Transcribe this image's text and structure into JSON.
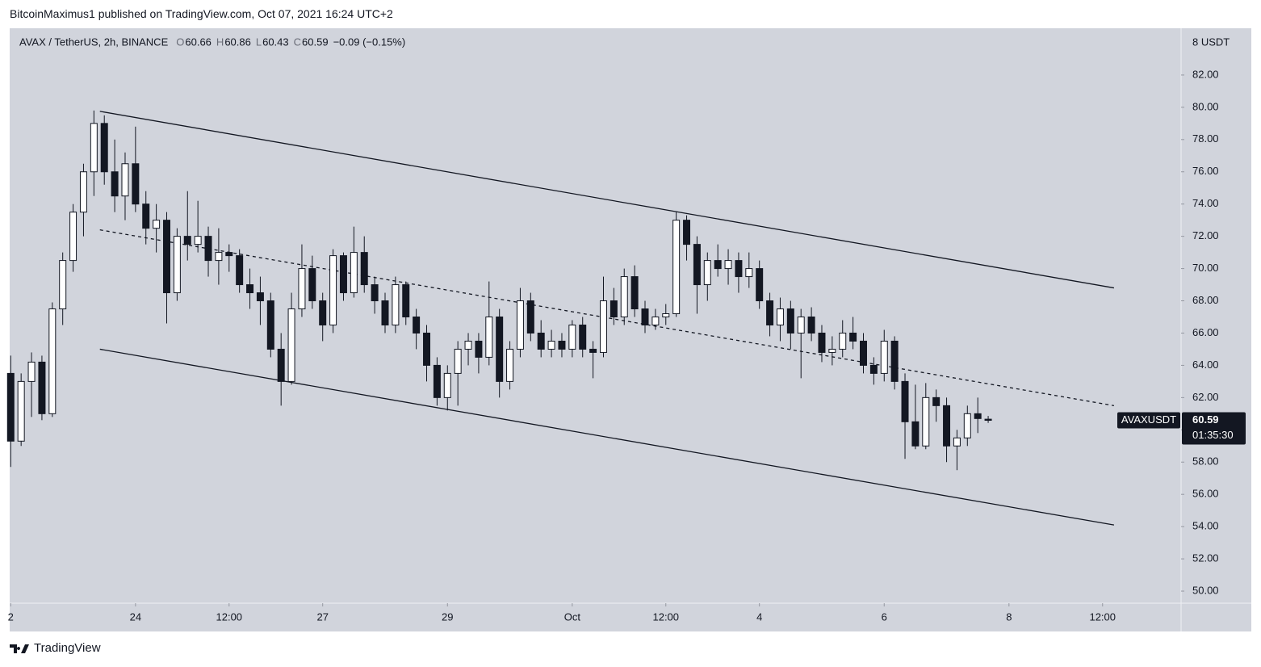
{
  "header": {
    "published": "BitcoinMaximus1 published on TradingView.com, Oct 07, 2021 16:24 UTC+2"
  },
  "footer": {
    "brand": "TradingView"
  },
  "chart_data": {
    "type": "candlestick",
    "legend": {
      "symbol": "AVAX / TetherUS, 2h, BINANCE",
      "items": [
        {
          "key": "O",
          "value": "60.66"
        },
        {
          "key": "H",
          "value": "60.86"
        },
        {
          "key": "L",
          "value": "60.43"
        },
        {
          "key": "C",
          "value": "60.59"
        }
      ],
      "change": "−0.09 (−0.15%)"
    },
    "unit_label": "8 USDT",
    "symbol_tag": "AVAXUSDT",
    "last_price_label": "60.59",
    "countdown": "01:35:30",
    "up_color": "#ffffff",
    "down_color": "#131722",
    "wick_color": "#131722",
    "grid": false,
    "xlim": [
      -0.4,
      450.2
    ],
    "ylim": [
      49.25,
      84.9
    ],
    "xticks": [
      {
        "value": 0,
        "label": "2"
      },
      {
        "value": 48,
        "label": "24"
      },
      {
        "value": 84,
        "label": "12:00"
      },
      {
        "value": 120,
        "label": "27"
      },
      {
        "value": 168,
        "label": "29"
      },
      {
        "value": 216,
        "label": "Oct"
      },
      {
        "value": 252,
        "label": "12:00"
      },
      {
        "value": 288,
        "label": "4"
      },
      {
        "value": 336,
        "label": "6"
      },
      {
        "value": 384,
        "label": "8"
      },
      {
        "value": 420,
        "label": "12:00"
      }
    ],
    "yticks": [
      {
        "value": 50,
        "label": "50.00"
      },
      {
        "value": 52,
        "label": "52.00"
      },
      {
        "value": 54,
        "label": "54.00"
      },
      {
        "value": 56,
        "label": "56.00"
      },
      {
        "value": 58,
        "label": "58.00"
      },
      {
        "value": 60,
        "label": "60.00"
      },
      {
        "value": 62,
        "label": "62.00"
      },
      {
        "value": 64,
        "label": "64.00"
      },
      {
        "value": 66,
        "label": "66.00"
      },
      {
        "value": 68,
        "label": "68.00"
      },
      {
        "value": 70,
        "label": "70.00"
      },
      {
        "value": 72,
        "label": "72.00"
      },
      {
        "value": 74,
        "label": "74.00"
      },
      {
        "value": 76,
        "label": "76.00"
      },
      {
        "value": 78,
        "label": "78.00"
      },
      {
        "value": 80,
        "label": "80.00"
      },
      {
        "value": 82,
        "label": "82.00"
      }
    ],
    "x": [
      0,
      4,
      8,
      12,
      16,
      20,
      24,
      28,
      32,
      36,
      40,
      44,
      48,
      52,
      56,
      60,
      64,
      68,
      72,
      76,
      80,
      84,
      88,
      92,
      96,
      100,
      104,
      108,
      112,
      116,
      120,
      124,
      128,
      132,
      136,
      140,
      144,
      148,
      152,
      156,
      160,
      164,
      168,
      172,
      176,
      180,
      184,
      188,
      192,
      196,
      200,
      204,
      208,
      212,
      216,
      220,
      224,
      228,
      232,
      236,
      240,
      244,
      248,
      252,
      256,
      260,
      264,
      268,
      272,
      276,
      280,
      284,
      288,
      292,
      296,
      300,
      304,
      308,
      312,
      316,
      320,
      324,
      328,
      332,
      336,
      340,
      344,
      348,
      352,
      356,
      360,
      364,
      368,
      372,
      376
    ],
    "open": [
      63.5,
      59.3,
      63.0,
      64.2,
      61.0,
      67.5,
      70.5,
      73.5,
      76.0,
      79.0,
      76.0,
      74.5,
      76.5,
      74.0,
      72.5,
      73.0,
      68.5,
      72.0,
      71.5,
      72.0,
      70.5,
      71.0,
      70.8,
      69.0,
      68.5,
      68.0,
      65.0,
      63.0,
      67.5,
      70.0,
      68.0,
      66.5,
      70.8,
      68.5,
      71.0,
      69.0,
      68.0,
      66.5,
      69.0,
      67.0,
      66.0,
      64.0,
      62.0,
      63.5,
      65.0,
      65.5,
      64.5,
      67.0,
      63.0,
      65.0,
      68.0,
      66.0,
      65.0,
      65.5,
      65.0,
      66.5,
      65.0,
      64.8,
      68.0,
      67.0,
      69.5,
      67.5,
      66.5,
      67.0,
      67.2,
      73.0,
      71.5,
      69.0,
      70.5,
      70.0,
      70.5,
      69.5,
      70.0,
      68.0,
      66.5,
      67.5,
      66.0,
      67.0,
      66.0,
      64.8,
      65.0,
      66.0,
      65.5,
      64.0,
      63.5,
      65.5,
      63.0,
      60.5,
      59.0,
      62.0,
      61.5,
      59.0,
      59.5,
      61.0,
      60.66
    ],
    "high": [
      64.6,
      63.5,
      64.8,
      64.6,
      67.9,
      71.0,
      74.0,
      76.5,
      79.8,
      79.5,
      78.0,
      77.2,
      78.8,
      74.8,
      74.0,
      73.5,
      72.5,
      74.8,
      74.2,
      72.6,
      72.5,
      71.5,
      71.2,
      70.0,
      69.5,
      68.5,
      66.0,
      68.5,
      71.5,
      70.8,
      68.5,
      71.2,
      71.0,
      72.6,
      72.0,
      69.5,
      68.5,
      69.5,
      69.2,
      67.5,
      66.5,
      64.5,
      64.0,
      65.5,
      66.0,
      66.0,
      69.2,
      67.5,
      65.5,
      68.8,
      68.5,
      66.8,
      66.2,
      66.0,
      66.8,
      67.0,
      65.5,
      69.5,
      68.8,
      70.0,
      70.2,
      68.0,
      67.5,
      67.8,
      73.5,
      73.3,
      72.0,
      71.0,
      71.5,
      71.2,
      71.0,
      71.0,
      70.5,
      68.5,
      68.2,
      68.0,
      67.5,
      67.6,
      66.5,
      65.8,
      66.8,
      67.0,
      66.0,
      64.5,
      66.2,
      65.8,
      63.5,
      62.8,
      62.9,
      62.5,
      62.0,
      60.0,
      61.5,
      62.0,
      60.86
    ],
    "low": [
      57.7,
      59.0,
      60.8,
      60.6,
      60.8,
      66.5,
      69.8,
      72.0,
      74.5,
      75.2,
      73.5,
      73.0,
      73.5,
      71.5,
      71.0,
      66.6,
      68.0,
      70.5,
      71.0,
      69.5,
      69.0,
      69.8,
      68.5,
      67.5,
      66.5,
      64.5,
      61.5,
      62.8,
      67.0,
      67.5,
      65.5,
      66.0,
      68.0,
      68.2,
      68.5,
      67.2,
      66.0,
      66.0,
      66.5,
      65.0,
      63.0,
      61.5,
      61.2,
      61.5,
      64.0,
      63.5,
      64.0,
      62.0,
      62.5,
      64.5,
      65.5,
      64.5,
      64.5,
      64.5,
      64.5,
      64.5,
      63.2,
      64.5,
      66.5,
      66.5,
      67.0,
      66.0,
      66.2,
      66.5,
      67.0,
      70.5,
      67.2,
      68.0,
      69.5,
      69.0,
      68.5,
      68.8,
      67.5,
      65.8,
      65.5,
      65.0,
      63.2,
      65.5,
      64.2,
      64.0,
      64.5,
      65.0,
      63.5,
      62.8,
      63.0,
      62.5,
      58.2,
      58.8,
      58.8,
      60.5,
      58.0,
      57.5,
      59.0,
      59.8,
      60.43
    ],
    "close": [
      59.3,
      63.0,
      64.2,
      61.0,
      67.5,
      70.5,
      73.5,
      76.0,
      79.0,
      76.0,
      74.5,
      76.5,
      74.0,
      72.5,
      73.0,
      68.5,
      72.0,
      71.5,
      72.0,
      70.5,
      71.0,
      70.8,
      69.0,
      68.5,
      68.0,
      65.0,
      63.0,
      67.5,
      70.0,
      68.0,
      66.5,
      70.8,
      68.5,
      71.0,
      69.0,
      68.0,
      66.5,
      69.0,
      67.0,
      66.0,
      64.0,
      62.0,
      63.5,
      65.0,
      65.5,
      64.5,
      67.0,
      63.0,
      65.0,
      68.0,
      66.0,
      65.0,
      65.5,
      65.0,
      66.5,
      65.0,
      64.8,
      68.0,
      67.0,
      69.5,
      67.5,
      66.5,
      67.0,
      67.2,
      73.0,
      71.5,
      69.0,
      70.5,
      70.0,
      70.5,
      69.5,
      70.0,
      68.0,
      66.5,
      67.5,
      66.0,
      67.0,
      66.0,
      64.8,
      65.0,
      66.0,
      65.5,
      64.0,
      63.5,
      65.5,
      63.0,
      60.5,
      59.0,
      62.0,
      61.5,
      59.0,
      59.5,
      61.0,
      60.7,
      60.59
    ],
    "trend_lines": [
      {
        "x": [
          34.3,
          424.4
        ],
        "y": [
          79.75,
          68.8
        ],
        "style": "solid"
      },
      {
        "x": [
          34.3,
          424.4
        ],
        "y": [
          72.4,
          61.5
        ],
        "style": "dashed"
      },
      {
        "x": [
          34.3,
          424.4
        ],
        "y": [
          65.0,
          54.1
        ],
        "style": "solid"
      }
    ]
  }
}
